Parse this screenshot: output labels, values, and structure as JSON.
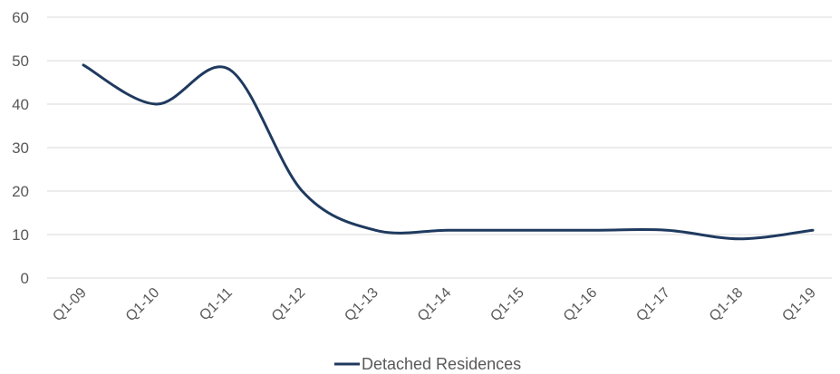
{
  "chart_data": {
    "type": "line",
    "categories": [
      "Q1-09",
      "Q1-10",
      "Q1-11",
      "Q1-12",
      "Q1-13",
      "Q1-14",
      "Q1-15",
      "Q1-16",
      "Q1-17",
      "Q1-18",
      "Q1-19"
    ],
    "series": [
      {
        "name": "Detached Residences",
        "values": [
          49,
          40,
          48,
          20,
          11,
          11,
          11,
          11,
          11,
          9,
          11
        ],
        "color": "#1f3a5f"
      }
    ],
    "ylim": [
      0,
      60
    ],
    "yticks": [
      0,
      10,
      20,
      30,
      40,
      50,
      60
    ],
    "grid": true,
    "smooth": true,
    "legend_position": "bottom-center"
  }
}
